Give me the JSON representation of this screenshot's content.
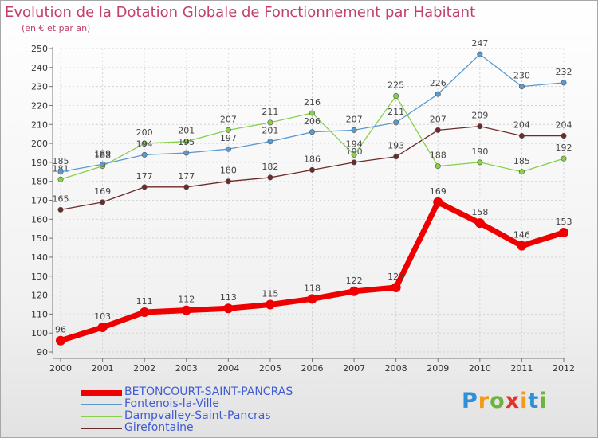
{
  "title": "Evolution de la Dotation Globale de Fonctionnement par Habitant",
  "subtitle": "(en € et par an)",
  "logo": {
    "letters": [
      "P",
      "r",
      "o",
      "x",
      "i",
      "t",
      "i"
    ],
    "colors": [
      "#2f8fd8",
      "#f29a1c",
      "#6db33f",
      "#e2332b",
      "#f29a1c",
      "#2f8fd8",
      "#6db33f"
    ]
  },
  "chart_data": {
    "type": "line",
    "x": [
      "2000",
      "2001",
      "2002",
      "2003",
      "2004",
      "2005",
      "2006",
      "2007",
      "2008",
      "2009",
      "2010",
      "2011",
      "2012"
    ],
    "ylim": [
      90,
      250
    ],
    "yticks": [
      90,
      100,
      110,
      120,
      130,
      140,
      150,
      160,
      170,
      180,
      190,
      200,
      210,
      220,
      230,
      240,
      250
    ],
    "grid": true,
    "legend_position": "bottom",
    "series": [
      {
        "name": "Girefontaine",
        "color": "#6e2a2a",
        "values": [
          165,
          169,
          177,
          177,
          180,
          182,
          186,
          190,
          193,
          207,
          209,
          204,
          204
        ]
      },
      {
        "name": "Dampvalley-Saint-Pancras",
        "color": "#86d04a",
        "values": [
          181,
          188,
          200,
          201,
          207,
          211,
          216,
          194,
          225,
          188,
          190,
          185,
          192
        ]
      },
      {
        "name": "Fontenois-la-Ville",
        "color": "#5a9ad0",
        "values": [
          185,
          189,
          194,
          195,
          197,
          201,
          206,
          207,
          211,
          226,
          247,
          230,
          232
        ]
      },
      {
        "name": "BETONCOURT-SAINT-PANCRAS",
        "color": "#ee0000",
        "values": [
          96,
          103,
          111,
          112,
          113,
          115,
          118,
          122,
          124,
          169,
          158,
          146,
          153
        ]
      }
    ],
    "data_labels": {
      "Girefontaine": [
        "165",
        "169",
        "177",
        "177",
        "180",
        "182",
        "186",
        "190",
        "193",
        "207",
        "209",
        "204",
        "204"
      ],
      "Dampvalley-Saint-Pancras": [
        "181",
        "188",
        "200",
        "201",
        "207",
        "211",
        "216",
        "194",
        "225",
        "188",
        "190",
        "185",
        "192"
      ],
      "Fontenois-la-Ville": [
        "185",
        "189",
        "194",
        "195",
        "197",
        "201",
        "206",
        "207",
        "211",
        "226",
        "247",
        "230",
        "232"
      ],
      "BETONCOURT-SAINT-PANCRAS": [
        "96",
        "103",
        "111",
        "112",
        "113",
        "115",
        "118",
        "122",
        "124",
        "169",
        "158",
        "146",
        "153"
      ]
    }
  },
  "legend": [
    {
      "label": "BETONCOURT-SAINT-PANCRAS",
      "color": "#ee0000"
    },
    {
      "label": "Fontenois-la-Ville",
      "color": "#5a9ad0"
    },
    {
      "label": "Dampvalley-Saint-Pancras",
      "color": "#86d04a"
    },
    {
      "label": "Girefontaine",
      "color": "#6e2a2a"
    }
  ]
}
